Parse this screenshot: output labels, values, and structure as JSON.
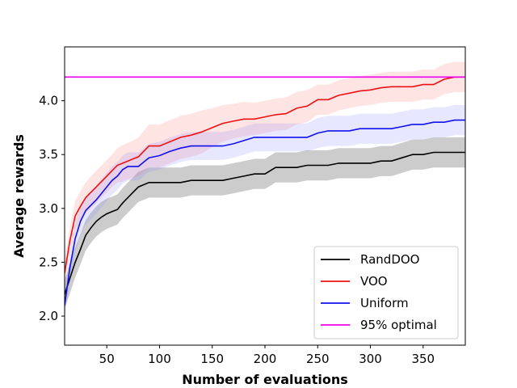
{
  "chart_data": {
    "type": "line",
    "xlabel": "Number of evaluations",
    "ylabel": "Average rewards",
    "xlim": [
      10,
      390
    ],
    "ylim": [
      1.73,
      4.5
    ],
    "xticks": [
      50,
      100,
      150,
      200,
      250,
      300,
      350
    ],
    "yticks": [
      2.0,
      2.5,
      3.0,
      3.5,
      4.0
    ],
    "ytick_labels": [
      "2.0",
      "2.5",
      "3.0",
      "3.5",
      "4.0"
    ],
    "legend_position": "lower-right",
    "grid": false,
    "x": [
      10,
      15,
      20,
      25,
      30,
      35,
      40,
      45,
      50,
      55,
      60,
      65,
      70,
      75,
      80,
      85,
      90,
      95,
      100,
      110,
      120,
      130,
      140,
      150,
      160,
      170,
      180,
      190,
      200,
      210,
      220,
      230,
      240,
      250,
      260,
      270,
      280,
      290,
      300,
      310,
      320,
      330,
      340,
      350,
      360,
      370,
      380,
      390
    ],
    "series": [
      {
        "name": "RandDOO",
        "color": "#000000",
        "band_color": "#000000",
        "values": [
          2.2,
          2.35,
          2.5,
          2.62,
          2.75,
          2.82,
          2.88,
          2.92,
          2.95,
          2.97,
          2.99,
          3.05,
          3.1,
          3.15,
          3.2,
          3.22,
          3.24,
          3.24,
          3.24,
          3.24,
          3.24,
          3.26,
          3.26,
          3.26,
          3.26,
          3.28,
          3.3,
          3.32,
          3.32,
          3.38,
          3.38,
          3.38,
          3.4,
          3.4,
          3.4,
          3.42,
          3.42,
          3.42,
          3.42,
          3.44,
          3.44,
          3.47,
          3.5,
          3.5,
          3.52,
          3.52,
          3.52,
          3.52
        ],
        "band": [
          0.13,
          0.14,
          0.14,
          0.14,
          0.14,
          0.14,
          0.14,
          0.14,
          0.14,
          0.14,
          0.14,
          0.14,
          0.14,
          0.14,
          0.14,
          0.14,
          0.14,
          0.14,
          0.14,
          0.14,
          0.14,
          0.14,
          0.14,
          0.14,
          0.14,
          0.14,
          0.14,
          0.14,
          0.14,
          0.14,
          0.14,
          0.14,
          0.14,
          0.14,
          0.14,
          0.14,
          0.14,
          0.14,
          0.14,
          0.14,
          0.14,
          0.14,
          0.14,
          0.14,
          0.14,
          0.14,
          0.14,
          0.14
        ]
      },
      {
        "name": "VOO",
        "color": "#ee1111",
        "band_color": "#ff7777",
        "values": [
          2.4,
          2.7,
          2.93,
          3.02,
          3.1,
          3.15,
          3.2,
          3.25,
          3.3,
          3.35,
          3.4,
          3.42,
          3.44,
          3.46,
          3.48,
          3.53,
          3.58,
          3.58,
          3.58,
          3.62,
          3.66,
          3.68,
          3.71,
          3.75,
          3.79,
          3.81,
          3.83,
          3.83,
          3.85,
          3.87,
          3.88,
          3.93,
          3.95,
          4.01,
          4.01,
          4.05,
          4.07,
          4.09,
          4.1,
          4.12,
          4.13,
          4.13,
          4.13,
          4.15,
          4.15,
          4.2,
          4.22,
          4.22
        ],
        "band": [
          0.12,
          0.13,
          0.14,
          0.14,
          0.14,
          0.15,
          0.15,
          0.15,
          0.15,
          0.15,
          0.16,
          0.17,
          0.17,
          0.17,
          0.18,
          0.19,
          0.2,
          0.2,
          0.2,
          0.2,
          0.2,
          0.2,
          0.2,
          0.18,
          0.17,
          0.16,
          0.16,
          0.15,
          0.15,
          0.15,
          0.15,
          0.15,
          0.15,
          0.14,
          0.14,
          0.14,
          0.14,
          0.14,
          0.14,
          0.14,
          0.14,
          0.14,
          0.14,
          0.14,
          0.14,
          0.14,
          0.14,
          0.14
        ]
      },
      {
        "name": "Uniform",
        "color": "#1111ee",
        "band_color": "#8888ff",
        "values": [
          2.1,
          2.45,
          2.72,
          2.88,
          2.98,
          3.03,
          3.08,
          3.14,
          3.2,
          3.26,
          3.3,
          3.36,
          3.39,
          3.39,
          3.39,
          3.43,
          3.47,
          3.48,
          3.49,
          3.53,
          3.56,
          3.58,
          3.58,
          3.58,
          3.58,
          3.6,
          3.63,
          3.66,
          3.66,
          3.66,
          3.66,
          3.66,
          3.66,
          3.7,
          3.72,
          3.72,
          3.72,
          3.74,
          3.74,
          3.74,
          3.74,
          3.76,
          3.78,
          3.78,
          3.8,
          3.8,
          3.82,
          3.82
        ],
        "band": [
          0.12,
          0.13,
          0.13,
          0.13,
          0.13,
          0.13,
          0.13,
          0.13,
          0.13,
          0.13,
          0.13,
          0.13,
          0.13,
          0.13,
          0.13,
          0.13,
          0.13,
          0.13,
          0.13,
          0.13,
          0.13,
          0.13,
          0.13,
          0.13,
          0.13,
          0.13,
          0.13,
          0.13,
          0.13,
          0.13,
          0.13,
          0.13,
          0.13,
          0.14,
          0.14,
          0.14,
          0.14,
          0.14,
          0.14,
          0.14,
          0.14,
          0.14,
          0.14,
          0.14,
          0.14,
          0.14,
          0.14,
          0.14
        ]
      }
    ],
    "reference_line": {
      "name": "95% optimal",
      "color": "#ee00ee",
      "y": 4.22
    },
    "legend": [
      {
        "label": "RandDOO",
        "color": "#000000"
      },
      {
        "label": "VOO",
        "color": "#ee1111"
      },
      {
        "label": "Uniform",
        "color": "#1111ee"
      },
      {
        "label": "95% optimal",
        "color": "#ee00ee"
      }
    ]
  }
}
